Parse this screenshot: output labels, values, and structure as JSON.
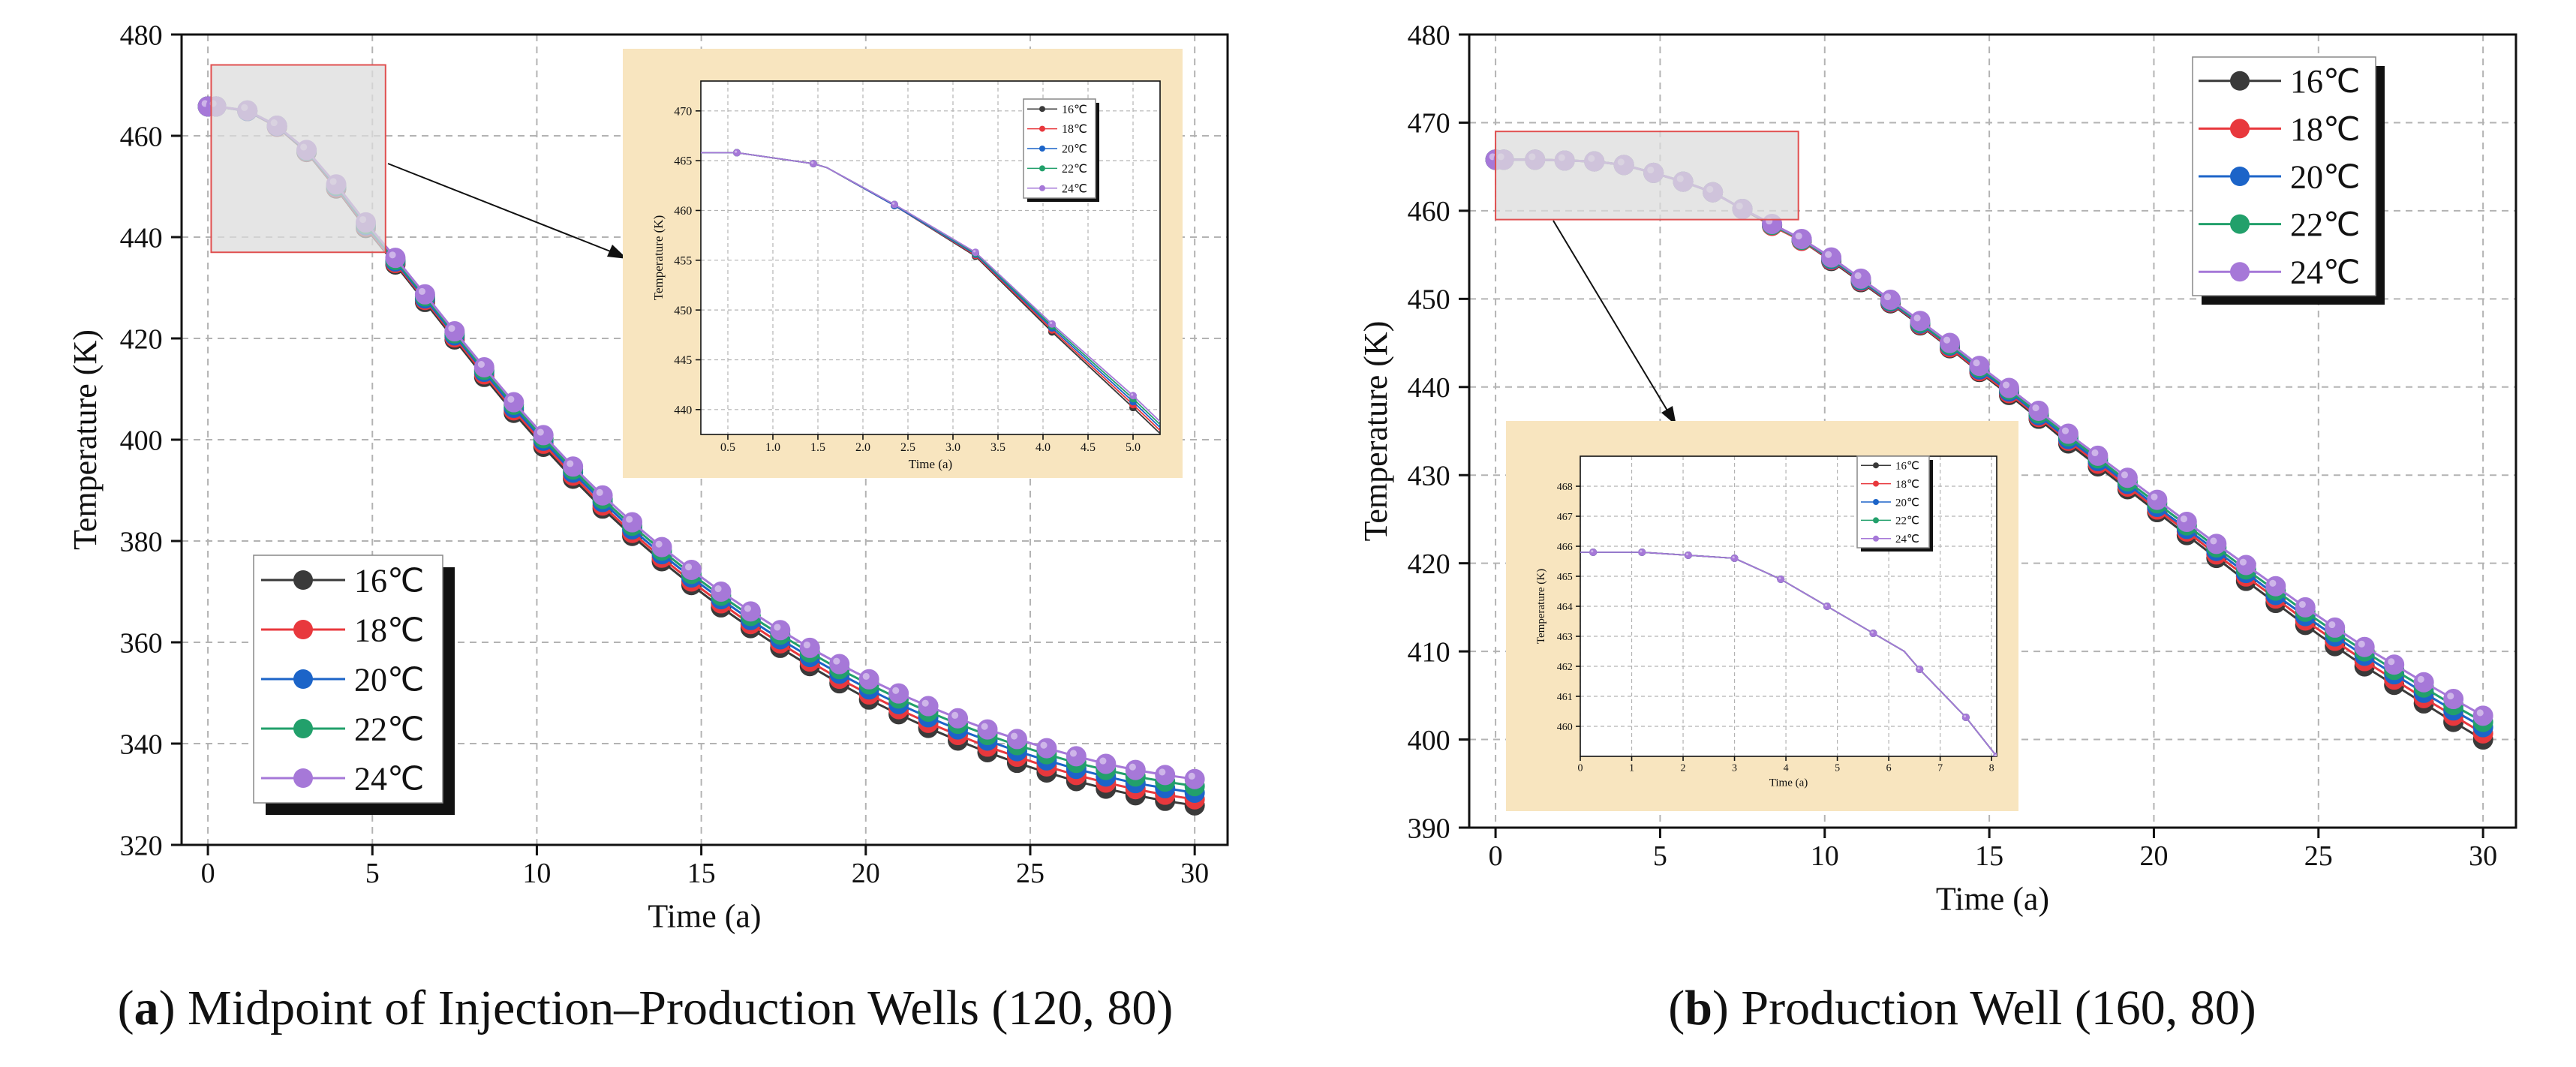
{
  "captions": [
    {
      "letter": "a",
      "rest": ") Midpoint of Injection–Production Wells (120, 80)"
    },
    {
      "letter": "b",
      "rest": ") Production Well (160, 80)"
    }
  ],
  "open_paren": "(",
  "colors": {
    "series": [
      "#3a3a3a",
      "#e8383d",
      "#1c64c8",
      "#22a06b",
      "#a678d8"
    ],
    "inset_bg": "#f8e5bf",
    "highlight_fill": "#dcdcdc",
    "highlight_border": "#e05050"
  },
  "chart_data": [
    {
      "type": "line",
      "xlabel": "Time (a)",
      "ylabel": "Temperature (K)",
      "xlim": [
        -0.8,
        31
      ],
      "ylim": [
        320,
        480
      ],
      "xticks": [
        0,
        5,
        10,
        15,
        20,
        25,
        30
      ],
      "yticks": [
        320,
        340,
        360,
        380,
        400,
        420,
        440,
        460,
        480
      ],
      "grid": true,
      "legend": "bottom-left",
      "legend_entries": [
        "16℃",
        "18℃",
        "20℃",
        "22℃",
        "24℃"
      ],
      "x": [
        0,
        0.25,
        1.2,
        2.1,
        3,
        3.9,
        4.8,
        5.7,
        6.6,
        7.5,
        8.4,
        9.3,
        10.2,
        11.1,
        12,
        12.9,
        13.8,
        14.7,
        15.6,
        16.5,
        17.4,
        18.3,
        19.2,
        20.1,
        21,
        21.9,
        22.8,
        23.7,
        24.6,
        25.5,
        26.4,
        27.3,
        28.2,
        29.1,
        30
      ],
      "series": [
        {
          "name": "16℃",
          "values": [
            465.8,
            465.8,
            464.9,
            461.8,
            456.8,
            449.6,
            441.8,
            434.6,
            427.2,
            419.8,
            412.4,
            405.3,
            398.6,
            392.3,
            386.4,
            381.0,
            376.0,
            371.3,
            366.9,
            362.8,
            358.9,
            355.3,
            351.9,
            348.7,
            345.8,
            343.1,
            340.6,
            338.3,
            336.2,
            334.3,
            332.6,
            331.1,
            329.8,
            328.7,
            327.8
          ]
        },
        {
          "name": "18℃",
          "values": [
            465.8,
            465.8,
            464.9,
            461.8,
            456.9,
            449.8,
            442.1,
            434.9,
            427.6,
            420.2,
            412.9,
            405.8,
            399.2,
            392.9,
            387.0,
            381.6,
            376.7,
            372.0,
            367.7,
            363.6,
            359.8,
            356.2,
            352.8,
            349.7,
            346.8,
            344.1,
            341.7,
            339.4,
            337.4,
            335.5,
            333.8,
            332.3,
            331.0,
            329.9,
            329.0
          ]
        },
        {
          "name": "20℃",
          "values": [
            465.8,
            465.8,
            464.9,
            461.9,
            457.0,
            450.0,
            442.3,
            435.2,
            427.9,
            420.6,
            413.4,
            406.3,
            399.8,
            393.5,
            387.7,
            382.3,
            377.4,
            372.8,
            368.5,
            364.4,
            360.6,
            357.1,
            353.8,
            350.7,
            347.8,
            345.2,
            342.8,
            340.6,
            338.5,
            336.7,
            335.0,
            333.5,
            332.2,
            331.2,
            330.3
          ]
        },
        {
          "name": "22℃",
          "values": [
            465.8,
            465.8,
            465.0,
            462.0,
            457.1,
            450.2,
            442.6,
            435.5,
            428.3,
            421.0,
            413.8,
            406.9,
            400.3,
            394.1,
            388.3,
            383.0,
            378.1,
            373.5,
            369.2,
            365.2,
            361.5,
            358.0,
            354.7,
            351.7,
            348.9,
            346.3,
            343.9,
            341.7,
            339.7,
            337.9,
            336.2,
            334.8,
            333.5,
            332.5,
            331.6
          ]
        },
        {
          "name": "24℃",
          "values": [
            465.8,
            465.8,
            465.0,
            462.0,
            457.2,
            450.4,
            442.9,
            435.9,
            428.7,
            421.4,
            414.3,
            407.4,
            400.9,
            394.7,
            389.0,
            383.7,
            378.8,
            374.3,
            370.0,
            366.1,
            362.4,
            358.9,
            355.7,
            352.7,
            349.9,
            347.4,
            345.0,
            342.8,
            340.9,
            339.1,
            337.5,
            336.0,
            334.8,
            333.8,
            333.0
          ]
        }
      ],
      "highlight": {
        "x": [
          0.1,
          5.4
        ],
        "y": [
          437,
          474
        ]
      },
      "inset": {
        "type": "line",
        "xlabel": "Time (a)",
        "ylabel": "Temperature (K)",
        "xlim": [
          0.2,
          5.3
        ],
        "ylim": [
          437.5,
          473
        ],
        "xticks": [
          0.5,
          1.0,
          1.5,
          2.0,
          2.5,
          3.0,
          3.5,
          4.0,
          4.5,
          5.0
        ],
        "xtick_labels": [
          "0.5",
          "1.0",
          "1.5",
          "2.0",
          "2.5",
          "3.0",
          "3.5",
          "4.0",
          "4.5",
          "5.0"
        ],
        "yticks": [
          440,
          445,
          450,
          455,
          460,
          465,
          470
        ],
        "grid": true,
        "legend": "top-right",
        "legend_entries": [
          "16℃",
          "18℃",
          "20℃",
          "22℃",
          "24℃"
        ],
        "x": [
          0.2,
          0.6,
          1.45,
          1.6,
          2.35,
          3.25,
          4.1,
          5.0,
          5.3
        ],
        "series": [
          {
            "name": "16℃",
            "values": [
              465.8,
              465.8,
              464.7,
              464.3,
              460.5,
              455.4,
              447.8,
              440.2,
              437.6
            ]
          },
          {
            "name": "18℃",
            "values": [
              465.8,
              465.8,
              464.7,
              464.3,
              460.5,
              455.5,
              448.0,
              440.5,
              437.9
            ]
          },
          {
            "name": "20℃",
            "values": [
              465.8,
              465.8,
              464.7,
              464.3,
              460.5,
              455.6,
              448.2,
              440.8,
              438.2
            ]
          },
          {
            "name": "22℃",
            "values": [
              465.8,
              465.8,
              464.7,
              464.3,
              460.6,
              455.7,
              448.4,
              441.1,
              438.5
            ]
          },
          {
            "name": "24℃",
            "values": [
              465.8,
              465.8,
              464.7,
              464.3,
              460.6,
              455.8,
              448.6,
              441.4,
              438.8
            ]
          }
        ],
        "marker_idx": [
          1,
          2,
          4,
          5,
          6,
          7
        ]
      }
    },
    {
      "type": "line",
      "xlabel": "Time (a)",
      "ylabel": "Temperature (K)",
      "xlim": [
        -0.8,
        31
      ],
      "ylim": [
        390,
        480
      ],
      "xticks": [
        0,
        5,
        10,
        15,
        20,
        25,
        30
      ],
      "yticks": [
        390,
        400,
        410,
        420,
        430,
        440,
        450,
        460,
        470,
        480
      ],
      "grid": true,
      "legend": "top-right",
      "legend_entries": [
        "16℃",
        "18℃",
        "20℃",
        "22℃",
        "24℃"
      ],
      "x": [
        0,
        0.25,
        1.2,
        2.1,
        3,
        3.9,
        4.8,
        5.7,
        6.6,
        7.5,
        8.4,
        9.3,
        10.2,
        11.1,
        12,
        12.9,
        13.8,
        14.7,
        15.6,
        16.5,
        17.4,
        18.3,
        19.2,
        20.1,
        21,
        21.9,
        22.8,
        23.7,
        24.6,
        25.5,
        26.4,
        27.3,
        28.2,
        29.1,
        30
      ],
      "series": [
        {
          "name": "16℃",
          "values": [
            465.8,
            465.8,
            465.8,
            465.7,
            465.6,
            465.2,
            464.3,
            463.3,
            462.1,
            460.2,
            458.3,
            456.6,
            454.3,
            451.9,
            449.5,
            447.0,
            444.4,
            441.7,
            439.1,
            436.4,
            433.6,
            431.0,
            428.4,
            425.8,
            423.2,
            420.6,
            418.0,
            415.5,
            413.0,
            410.6,
            408.3,
            406.2,
            404.1,
            402.0,
            400.0
          ]
        },
        {
          "name": "18℃",
          "values": [
            465.8,
            465.8,
            465.8,
            465.7,
            465.6,
            465.2,
            464.3,
            463.3,
            462.1,
            460.2,
            458.3,
            456.6,
            454.4,
            452.0,
            449.6,
            447.1,
            444.5,
            441.8,
            439.3,
            436.6,
            433.9,
            431.3,
            428.7,
            426.1,
            423.6,
            421.0,
            418.5,
            416.0,
            413.5,
            411.2,
            408.9,
            406.8,
            404.7,
            402.7,
            400.7
          ]
        },
        {
          "name": "20℃",
          "values": [
            465.8,
            465.8,
            465.8,
            465.7,
            465.6,
            465.2,
            464.3,
            463.3,
            462.1,
            460.2,
            458.4,
            456.7,
            454.5,
            452.1,
            449.7,
            447.2,
            444.7,
            442.0,
            439.5,
            436.8,
            434.1,
            431.6,
            429.0,
            426.4,
            423.9,
            421.4,
            418.9,
            416.4,
            414.0,
            411.7,
            409.5,
            407.4,
            405.3,
            403.3,
            401.4
          ]
        },
        {
          "name": "22℃",
          "values": [
            465.8,
            465.8,
            465.8,
            465.7,
            465.6,
            465.2,
            464.3,
            463.3,
            462.1,
            460.2,
            458.4,
            456.7,
            454.6,
            452.2,
            449.8,
            447.3,
            444.8,
            442.2,
            439.7,
            437.0,
            434.4,
            431.9,
            429.3,
            426.8,
            424.3,
            421.8,
            419.3,
            416.9,
            414.5,
            412.2,
            410.0,
            407.9,
            405.9,
            403.9,
            402.0
          ]
        },
        {
          "name": "24℃",
          "values": [
            465.8,
            465.8,
            465.8,
            465.7,
            465.6,
            465.2,
            464.3,
            463.3,
            462.1,
            460.2,
            458.5,
            456.8,
            454.7,
            452.3,
            449.9,
            447.5,
            445.0,
            442.4,
            439.9,
            437.3,
            434.7,
            432.2,
            429.7,
            427.2,
            424.7,
            422.2,
            419.8,
            417.4,
            415.0,
            412.7,
            410.5,
            408.5,
            406.5,
            404.6,
            402.7
          ]
        }
      ],
      "highlight": {
        "x": [
          0,
          9.2
        ],
        "y": [
          459,
          469
        ]
      },
      "inset": {
        "type": "line",
        "xlabel": "Time (a)",
        "ylabel": "Temperature (K)",
        "xlim": [
          0,
          8.1
        ],
        "ylim": [
          459,
          469
        ],
        "xticks": [
          0,
          1,
          2,
          3,
          4,
          5,
          6,
          7,
          8
        ],
        "xtick_labels": [
          "0",
          "1",
          "2",
          "3",
          "4",
          "5",
          "6",
          "7",
          "8"
        ],
        "yticks": [
          460,
          461,
          462,
          463,
          464,
          465,
          466,
          467,
          468
        ],
        "grid": true,
        "legend": "top-right",
        "legend_entries": [
          "16℃",
          "18℃",
          "20℃",
          "22℃",
          "24℃"
        ],
        "x": [
          0,
          0.25,
          1.2,
          2.1,
          3.0,
          3.9,
          4.8,
          5.7,
          6.3,
          6.6,
          7.5,
          8.1
        ],
        "series": [
          {
            "name": "16℃",
            "values": [
              465.8,
              465.8,
              465.8,
              465.7,
              465.6,
              464.9,
              464.0,
              463.1,
              462.5,
              461.9,
              460.3,
              459.0
            ]
          },
          {
            "name": "18℃",
            "values": [
              465.8,
              465.8,
              465.8,
              465.7,
              465.6,
              464.9,
              464.0,
              463.1,
              462.5,
              461.9,
              460.3,
              459.0
            ]
          },
          {
            "name": "20℃",
            "values": [
              465.8,
              465.8,
              465.8,
              465.7,
              465.6,
              464.9,
              464.0,
              463.1,
              462.5,
              461.9,
              460.3,
              459.0
            ]
          },
          {
            "name": "22℃",
            "values": [
              465.8,
              465.8,
              465.8,
              465.7,
              465.6,
              464.9,
              464.0,
              463.1,
              462.5,
              461.9,
              460.3,
              459.0
            ]
          },
          {
            "name": "24℃",
            "values": [
              465.8,
              465.8,
              465.8,
              465.7,
              465.6,
              464.9,
              464.0,
              463.1,
              462.5,
              461.9,
              460.3,
              459.0
            ]
          }
        ],
        "marker_idx": [
          1,
          2,
          3,
          4,
          5,
          6,
          7,
          9,
          10,
          11
        ]
      }
    }
  ]
}
